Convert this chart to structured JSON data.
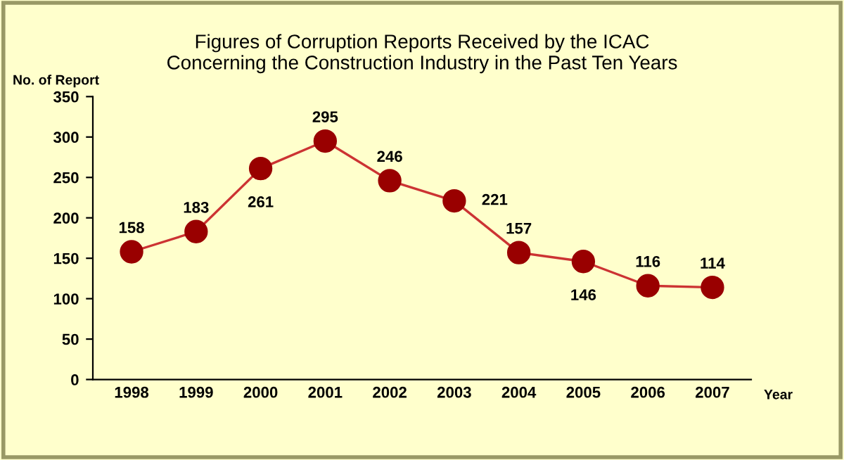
{
  "chart_data": {
    "type": "line",
    "title": "Figures of Corruption Reports Received by the ICAC\nConcerning the Construction Industry in the Past Ten Years",
    "categories": [
      "1998",
      "1999",
      "2000",
      "2001",
      "2002",
      "2003",
      "2004",
      "2005",
      "2006",
      "2007"
    ],
    "series": [
      {
        "color": "#cc3333",
        "values": [
          158,
          183,
          261,
          295,
          246,
          221,
          157,
          146,
          116,
          114
        ]
      }
    ],
    "marker": "circle",
    "line_style": "solid",
    "data_labels": true,
    "grid": false,
    "legend": false,
    "ylim": [
      0,
      350
    ],
    "yticks": [
      0,
      50,
      100,
      150,
      200,
      250,
      300,
      350
    ],
    "ylabel": "No. of Report",
    "xlabel": "Year"
  }
}
